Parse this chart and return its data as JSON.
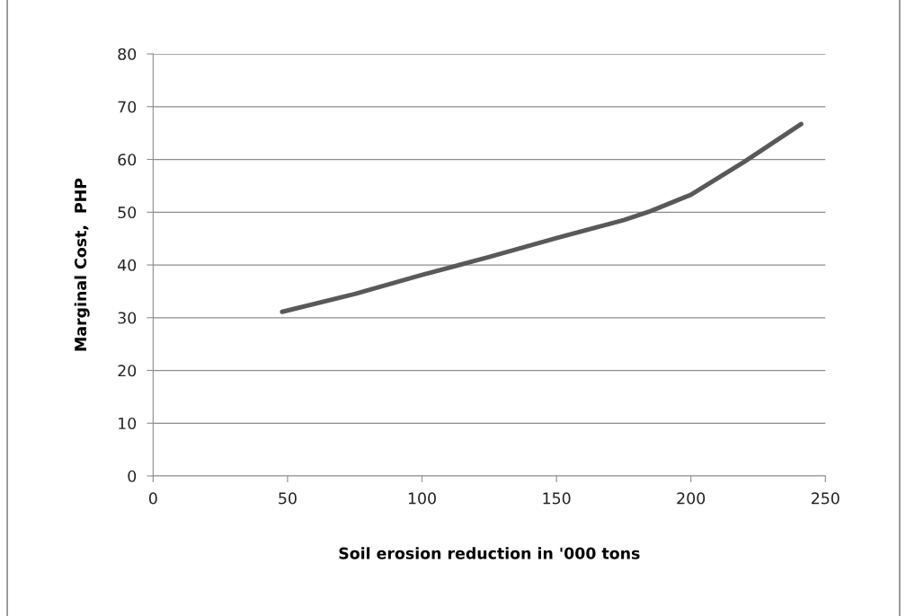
{
  "chart_data": {
    "type": "line",
    "xlabel": "Soil erosion reduction in '000 tons",
    "ylabel": "Marginal Cost,  PHP",
    "x": [
      48,
      75,
      100,
      125,
      150,
      175,
      185,
      200,
      220,
      241
    ],
    "series": [
      {
        "color": "#595959",
        "values": [
          31.1,
          34.5,
          38.1,
          41.5,
          45.1,
          48.5,
          50.2,
          53.3,
          59.6,
          66.7
        ]
      }
    ],
    "xlim": [
      0,
      250
    ],
    "xticks": [
      0,
      50,
      100,
      150,
      200,
      250
    ],
    "ylim": [
      0,
      80
    ],
    "yticks": [
      0,
      10,
      20,
      30,
      40,
      50,
      60,
      70,
      80
    ],
    "grid": "y",
    "marker": "none",
    "line_style": "solid"
  }
}
